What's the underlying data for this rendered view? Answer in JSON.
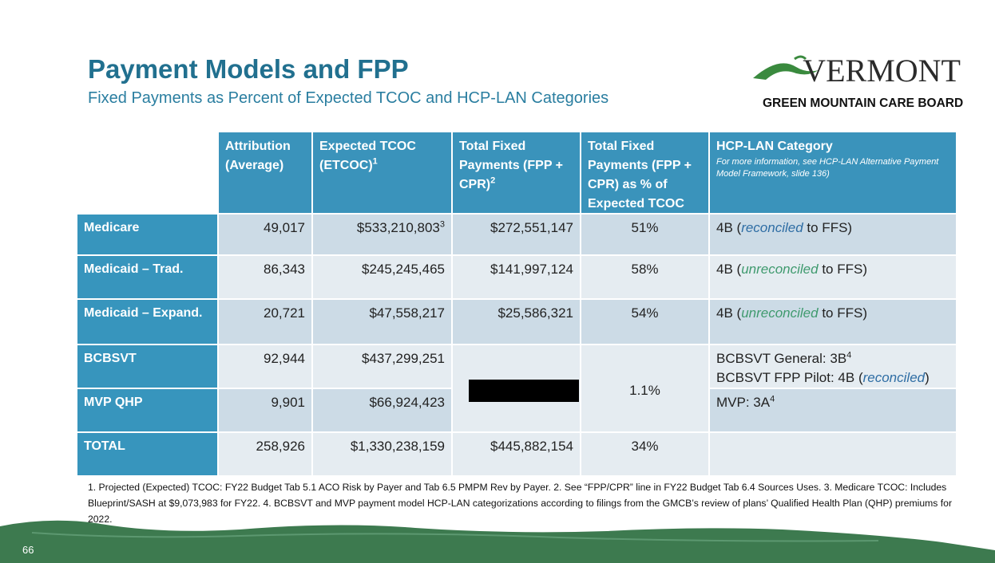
{
  "header": {
    "title": "Payment Models and FPP",
    "subtitle": "Fixed Payments as Percent of Expected TCOC and HCP-LAN Categories"
  },
  "logo": {
    "name": "VERMONT",
    "org": "GREEN MOUNTAIN CARE BOARD"
  },
  "table": {
    "columns": [
      {
        "text": "Attribution (Average)"
      },
      {
        "text": "Expected TCOC (ETCOC)",
        "sup": "1"
      },
      {
        "text": "Total Fixed Payments (FPP + CPR)",
        "sup": "2"
      },
      {
        "text": "Total Fixed Payments (FPP + CPR) as % of Expected TCOC"
      },
      {
        "text": "HCP-LAN Category",
        "note": "For more information, see HCP-LAN Alternative Payment Model Framework, slide 136)"
      }
    ],
    "rows": [
      {
        "label": "Medicare",
        "attribution": "49,017",
        "etcoc": {
          "text": "$533,210,803",
          "sup": "3"
        },
        "fixed": "$272,551,147",
        "percent": "51%",
        "category": [
          [
            {
              "text": "4B ("
            },
            {
              "text": "reconciled",
              "color": "#2e6da4"
            },
            {
              "text": " to FFS)"
            }
          ]
        ]
      },
      {
        "label": "Medicaid – Trad.",
        "attribution": "86,343",
        "etcoc": {
          "text": "$245,245,465"
        },
        "fixed": "$141,997,124",
        "percent": "58%",
        "category": [
          [
            {
              "text": "4B ("
            },
            {
              "text": "unreconciled",
              "color": "#3f9a6e"
            },
            {
              "text": " to FFS)"
            }
          ]
        ]
      },
      {
        "label": "Medicaid – Expand.",
        "attribution": "20,721",
        "etcoc": {
          "text": "$47,558,217"
        },
        "fixed": "$25,586,321",
        "percent": "54%",
        "category": [
          [
            {
              "text": "4B ("
            },
            {
              "text": "unreconciled",
              "color": "#3f9a6e"
            },
            {
              "text": " to FFS)"
            }
          ]
        ]
      },
      {
        "label": "BCBSVT",
        "attribution": "92,944",
        "etcoc": {
          "text": "$437,299,251"
        },
        "category": [
          [
            {
              "text": "BCBSVT General: 3B",
              "sup": "4"
            }
          ],
          [
            {
              "text": "BCBSVT FPP Pilot: 4B ("
            },
            {
              "text": "reconciled",
              "color": "#2e6da4"
            },
            {
              "text": ")"
            }
          ]
        ]
      },
      {
        "label": "MVP QHP",
        "attribution": "9,901",
        "etcoc": {
          "text": "$66,924,423"
        },
        "category": [
          [
            {
              "text": "MVP: 3A",
              "sup": "4"
            }
          ]
        ]
      },
      {
        "label": "TOTAL",
        "attribution": "258,926",
        "etcoc": {
          "text": "$1,330,238,159"
        },
        "fixed": "$445,882,154",
        "percent": "34%",
        "category": []
      }
    ],
    "merged": {
      "percent": "1.1%"
    }
  },
  "footnote": "1. Projected (Expected) TCOC: FY22 Budget Tab 5.1 ACO Risk by Payer and Tab 6.5 PMPM Rev by Payer. 2. See “FPP/CPR” line in FY22 Budget Tab 6.4 Sources Uses. 3. Medicare TCOC: Includes Blueprint/SASH at $9,073,983 for FY22. 4. BCBSVT and MVP payment model HCP-LAN categorizations according to filings from the GMCB’s review of plans’ Qualified Health Plan (QHP) premiums for 2022.",
  "page_number": "66"
}
